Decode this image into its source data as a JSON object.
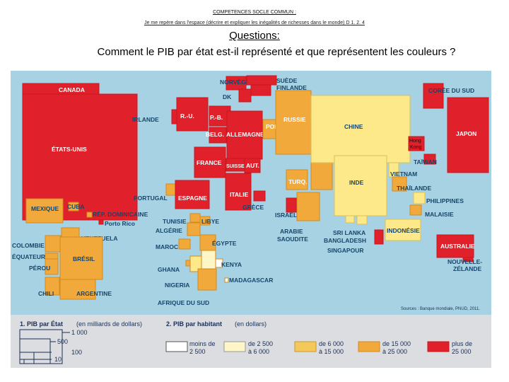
{
  "header": {
    "line1": "COMPETENCES SOCLE COMMUN :",
    "line2": "Je me repère dans l'espace (décrire et expliquer les inégalités de richesses dans le monde) D 1. 2. 4",
    "questions_title": "Questions:",
    "question": "Comment le PIB par état est-il représenté et que représentent les couleurs ?"
  },
  "colors": {
    "red": "#e0202a",
    "orange": "#f0a93a",
    "yellow": "#fde98a",
    "pale": "#fff6c8",
    "white": "#ffffff",
    "ocean": "#a7d2e4",
    "legend_bg": "#dcdde0"
  },
  "countries": {
    "canada": "CANADA",
    "usa": "ÉTATS-UNIS",
    "mexique": "MEXIQUE",
    "cuba": "CUBA",
    "rep_dom": "RÉP. DOMINICAINE",
    "porto_rico": "Porto Rico",
    "venezuela": "VENEZUELA",
    "colombie": "COLOMBIE",
    "equateur": "ÉQUATEUR",
    "perou": "PÉROU",
    "bresil": "BRÉSIL",
    "chili": "CHILI",
    "argentine": "ARGENTINE",
    "norvege": "NORVÈGE",
    "suede": "SUÈDE",
    "finlande": "FINLANDE",
    "dk": "DK",
    "irlande": "IRLANDE",
    "ru": "R.-U.",
    "pb": "P.-B.",
    "belg": "BELG.",
    "allemagne": "ALLEMAGNE",
    "pol": "POL.",
    "russie": "RUSSIE",
    "france": "FRANCE",
    "suisse": "SUISSE",
    "aut": "AUT.",
    "portugal": "PORTUGAL",
    "espagne": "ESPAGNE",
    "italie": "ITALIE",
    "grece": "GRÈCE",
    "turq": "TURQ.",
    "israel": "ISRAËL",
    "arabie": "ARABIE",
    "saoudite": "SAOUDITE",
    "tunisie": "TUNISIE",
    "libye": "LIBYE",
    "algerie": "ALGÉRIE",
    "maroc": "MAROC",
    "egypte": "ÉGYPTE",
    "ghana": "GHANA",
    "nigeria": "NIGERIA",
    "kenya": "KENYA",
    "madagascar": "MADAGASCAR",
    "afrique_sud": "AFRIQUE DU SUD",
    "chine": "CHINE",
    "hong": "Hong",
    "kong": "Kong",
    "coree": "CORÉE DU SUD",
    "japon": "JAPON",
    "taiwan": "TAÏWAN",
    "vietnam": "VIETNAM",
    "inde": "INDE",
    "thailande": "THAÏLANDE",
    "philippines": "PHILIPPINES",
    "malaisie": "MALAISIE",
    "indonesie": "INDONÉSIE",
    "sri_lanka": "SRI LANKA",
    "bangladesh": "BANGLADESH",
    "singapour": "SINGAPOUR",
    "australie": "AUSTRALIE",
    "nz1": "NOUVELLE-",
    "nz2": "ZÉLANDE"
  },
  "source": "Sources : Banque mondiale, PNUD, 2011.",
  "legend": {
    "title1": "1. PIB par État",
    "title1_unit": "(en milliards de dollars)",
    "sizes": [
      "1 000",
      "500",
      "100",
      "10"
    ],
    "title2": "2. PIB par habitant",
    "title2_unit": "(en dollars)",
    "classes": [
      {
        "l1": "moins de",
        "l2": "2 500"
      },
      {
        "l1": "de 2 500",
        "l2": "à 6 000"
      },
      {
        "l1": "de 6 000",
        "l2": "à 15 000"
      },
      {
        "l1": "de 15 000",
        "l2": "à 25 000"
      },
      {
        "l1": "plus de",
        "l2": "25 000"
      }
    ]
  }
}
